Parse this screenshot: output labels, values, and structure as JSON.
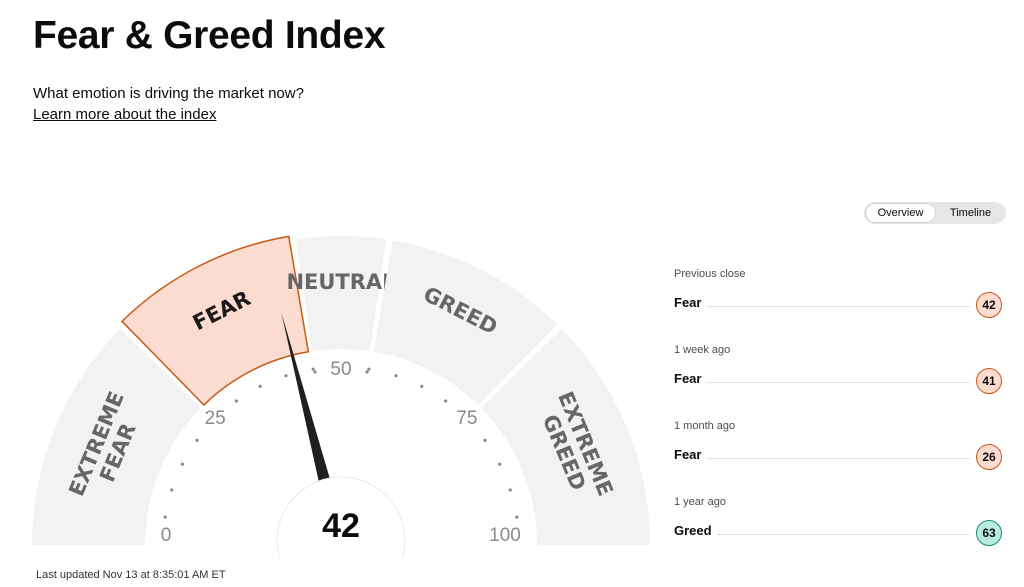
{
  "header": {
    "title": "Fear & Greed Index",
    "subtitle": "What emotion is driving the market now?",
    "learn_link": "Learn more about the index"
  },
  "gauge": {
    "value": 42,
    "value_text": "42",
    "active_segment": "fear",
    "segments": [
      {
        "key": "extreme-fear",
        "lines": [
          "EXTREME",
          "FEAR"
        ],
        "from": 0,
        "to": 25
      },
      {
        "key": "fear",
        "lines": [
          "FEAR"
        ],
        "from": 25,
        "to": 45
      },
      {
        "key": "neutral",
        "lines": [
          "NEUTRAL"
        ],
        "from": 45,
        "to": 55
      },
      {
        "key": "greed",
        "lines": [
          "GREED"
        ],
        "from": 55,
        "to": 75
      },
      {
        "key": "extreme-greed",
        "lines": [
          "EXTREME",
          "GREED"
        ],
        "from": 75,
        "to": 100
      }
    ],
    "tick_labels": [
      "0",
      "25",
      "50",
      "75",
      "100"
    ],
    "colors": {
      "segment": "#f2f2f2",
      "active_fill": "#fcdbd0",
      "active_stroke": "#c75a13",
      "label": "#666666",
      "needle": "#1f1f1f"
    }
  },
  "toggle": {
    "overview": "Overview",
    "timeline": "Timeline",
    "active": "overview"
  },
  "history": [
    {
      "label": "Previous close",
      "status": "Fear",
      "value": "42",
      "bg": "#fcdbd0",
      "border": "#c75a13"
    },
    {
      "label": "1 week ago",
      "status": "Fear",
      "value": "41",
      "bg": "#fcdbd0",
      "border": "#c75a13"
    },
    {
      "label": "1 month ago",
      "status": "Fear",
      "value": "26",
      "bg": "#fcdbd0",
      "border": "#c75a13"
    },
    {
      "label": "1 year ago",
      "status": "Greed",
      "value": "63",
      "bg": "#b8ebe0",
      "border": "#1e8a70"
    }
  ],
  "footer": {
    "updated": "Last updated Nov 13 at 8:35:01 AM ET"
  }
}
